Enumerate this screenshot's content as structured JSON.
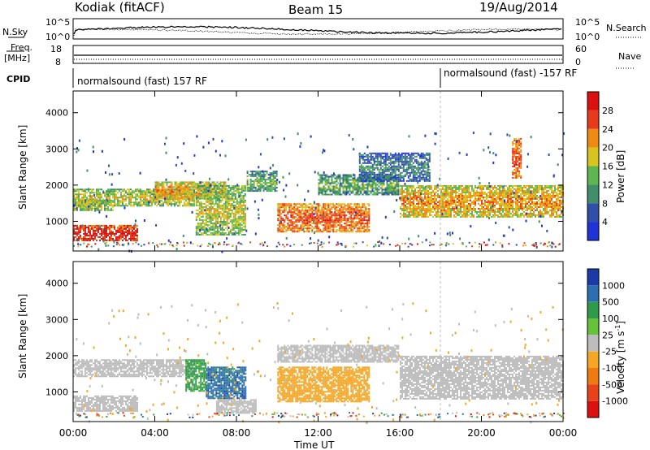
{
  "header": {
    "station": "Kodiak (fitACF)",
    "beam": "Beam 15",
    "date": "19/Aug/2014"
  },
  "strips": {
    "nsky_label": "N.Sky",
    "nsky_ticks": [
      "10^5",
      "10^0"
    ],
    "nsearch_label": "N.Search",
    "nsearch_ticks": [
      "10^5",
      "10^0"
    ],
    "freq_label": "Freq.",
    "freq_unit": "[MHz]",
    "freq_ticks": [
      "18",
      "8"
    ],
    "nave_label": "Nave",
    "nave_ticks": [
      "60",
      "0"
    ],
    "cpid_label": "CPID",
    "cpid_segments": [
      "normalsound (fast) 157 RF",
      "normalsound (fast) -157 RF"
    ],
    "cpid_switch_time": "18:00"
  },
  "x_axis": {
    "label": "Time UT",
    "ticks": [
      "00:00",
      "04:00",
      "08:00",
      "12:00",
      "16:00",
      "20:00",
      "00:00"
    ]
  },
  "y_axis": {
    "label": "Slant Range [km]",
    "ticks": [
      "1000",
      "2000",
      "3000",
      "4000"
    ]
  },
  "power_colorbar": {
    "label": "Power [dB]",
    "ticks": [
      "4",
      "8",
      "12",
      "16",
      "20",
      "24",
      "28"
    ],
    "colors": [
      "#1f33d6",
      "#2f4fa8",
      "#3f8f6a",
      "#5cb84e",
      "#d9c41f",
      "#f08a12",
      "#e63a1a",
      "#dd1010"
    ]
  },
  "velocity_colorbar": {
    "label": "Velocity [m s",
    "label_sup": "-1",
    "label_end": "]",
    "ticks": [
      "1000",
      "500",
      "100",
      "25",
      "-25",
      "-100",
      "-500",
      "-1000"
    ],
    "colors": [
      "#1b3aa8",
      "#2c6fb0",
      "#2f9a4a",
      "#66c23a",
      "#bdbdbd",
      "#f5a623",
      "#f07a12",
      "#e8421a",
      "#dd1010"
    ]
  },
  "chart_data": [
    {
      "type": "heatmap",
      "title": "Beam 15",
      "xlabel": "Time UT",
      "ylabel": "Slant Range [km]",
      "xlim": [
        "00:00",
        "24:00"
      ],
      "ylim": [
        180,
        4600
      ],
      "quantity": "Power [dB]",
      "bands": [
        {
          "t": [
            0.0,
            3.2
          ],
          "r": [
            450,
            900
          ],
          "value": 28
        },
        {
          "t": [
            0.0,
            2.0
          ],
          "r": [
            1300,
            1600
          ],
          "value": 16
        },
        {
          "t": [
            0.0,
            6.0
          ],
          "r": [
            1400,
            1900
          ],
          "value": 16
        },
        {
          "t": [
            4.0,
            7.5
          ],
          "r": [
            1600,
            2100
          ],
          "value": 20
        },
        {
          "t": [
            6.0,
            8.5
          ],
          "r": [
            600,
            2000
          ],
          "value": 16
        },
        {
          "t": [
            10.0,
            14.5
          ],
          "r": [
            700,
            1500
          ],
          "value": 24
        },
        {
          "t": [
            8.5,
            10.0
          ],
          "r": [
            1800,
            2400
          ],
          "value": 12
        },
        {
          "t": [
            12.0,
            16.0
          ],
          "r": [
            1700,
            2300
          ],
          "value": 12
        },
        {
          "t": [
            14.0,
            17.5
          ],
          "r": [
            2100,
            2900
          ],
          "value": 8
        },
        {
          "t": [
            16.0,
            24.0
          ],
          "r": [
            1100,
            2000
          ],
          "value": 20
        },
        {
          "t": [
            21.5,
            22.0
          ],
          "r": [
            2200,
            3300
          ],
          "value": 24
        }
      ]
    },
    {
      "type": "heatmap",
      "title": "Beam 15",
      "xlabel": "Time UT",
      "ylabel": "Slant Range [km]",
      "xlim": [
        "00:00",
        "24:00"
      ],
      "ylim": [
        180,
        4600
      ],
      "quantity": "Velocity [m s-1]",
      "bands": [
        {
          "t": [
            0.0,
            3.2
          ],
          "r": [
            450,
            900
          ],
          "value": 0
        },
        {
          "t": [
            0.0,
            6.0
          ],
          "r": [
            1400,
            1900
          ],
          "value": 0
        },
        {
          "t": [
            6.5,
            8.5
          ],
          "r": [
            800,
            1700
          ],
          "value": 500
        },
        {
          "t": [
            7.0,
            9.0
          ],
          "r": [
            400,
            800
          ],
          "value": 0
        },
        {
          "t": [
            10.0,
            14.5
          ],
          "r": [
            700,
            1700
          ],
          "value": -100
        },
        {
          "t": [
            10.0,
            16.0
          ],
          "r": [
            1800,
            2300
          ],
          "value": 0
        },
        {
          "t": [
            16.0,
            24.0
          ],
          "r": [
            800,
            2000
          ],
          "value": 0
        },
        {
          "t": [
            5.5,
            6.5
          ],
          "r": [
            1000,
            1900
          ],
          "value": 100
        }
      ]
    }
  ]
}
